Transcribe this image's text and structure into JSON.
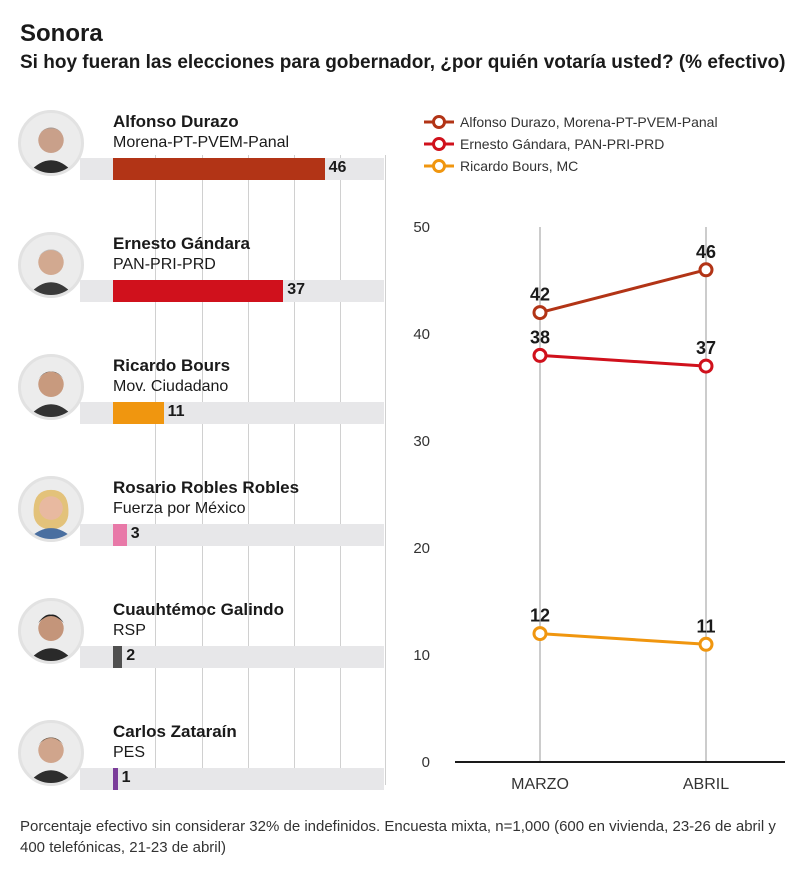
{
  "title": "Sonora",
  "subtitle": "Si hoy fueran las elecciones para gobernador, ¿por quién votaría usted? (% efectivo)",
  "footnote": "Porcentaje efectivo sin considerar 32% de indefinidos. Encuesta mixta, n=1,000 (600 en vivienda, 23-26 de abril y 400 telefónicas, 21-23 de abril)",
  "candidates": [
    {
      "name": "Alfonso Durazo",
      "party": "Morena-PT-PVEM-Panal",
      "value": 46,
      "color": "#b23416",
      "value_label": "46"
    },
    {
      "name": "Ernesto Gándara",
      "party": "PAN-PRI-PRD",
      "value": 37,
      "color": "#d0111c",
      "value_label": "37"
    },
    {
      "name": "Ricardo Bours",
      "party": "Mov. Ciudadano",
      "value": 11,
      "color": "#f0960f",
      "value_label": "11"
    },
    {
      "name": "Rosario Robles Robles",
      "party": "Fuerza por México",
      "value": 3,
      "color": "#e879a8",
      "value_label": "3"
    },
    {
      "name": "Cuauhtémoc Galindo",
      "party": "RSP",
      "value": 2,
      "color": "#505050",
      "value_label": "2"
    },
    {
      "name": "Carlos Zataraín",
      "party": "PES",
      "value": 1,
      "color": "#7b3d9a",
      "value_label": "1"
    }
  ],
  "chart_data": [
    {
      "type": "bar",
      "orientation": "horizontal",
      "categories": [
        "Alfonso Durazo",
        "Ernesto Gándara",
        "Ricardo Bours",
        "Rosario Robles Robles",
        "Cuauhtémoc Galindo",
        "Carlos Zataraín"
      ],
      "values": [
        46,
        37,
        11,
        3,
        2,
        1
      ],
      "xlim": [
        0,
        60
      ]
    },
    {
      "type": "line",
      "categories": [
        "MARZO",
        "ABRIL"
      ],
      "series": [
        {
          "name": "Alfonso Durazo, Morena-PT-PVEM-Panal",
          "values": [
            42,
            46
          ],
          "color": "#b23416"
        },
        {
          "name": "Ernesto Gándara, PAN-PRI-PRD",
          "values": [
            38,
            37
          ],
          "color": "#d0111c"
        },
        {
          "name": "Ricardo Bours, MC",
          "values": [
            12,
            11
          ],
          "color": "#f0960f"
        }
      ],
      "ylim": [
        0,
        50
      ],
      "yticks": [
        0,
        10,
        20,
        30,
        40,
        50
      ],
      "legend_position": "top"
    }
  ]
}
